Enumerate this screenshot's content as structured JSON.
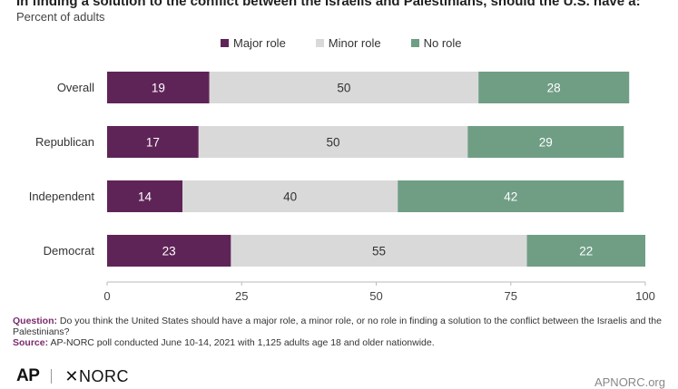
{
  "header": {
    "title": "In finding a solution to the conflict between the Israelis and Palestinians, should the U.S. have a:",
    "subtitle": "Percent of adults"
  },
  "colors": {
    "major": "#5f2457",
    "minor": "#d9d9d9",
    "none": "#6f9e85",
    "accent": "#7b2a6d"
  },
  "chart_data": {
    "type": "bar",
    "orientation": "horizontal",
    "stacked": true,
    "categories": [
      "Overall",
      "Republican",
      "Independent",
      "Democrat"
    ],
    "series": [
      {
        "name": "Major role",
        "values": [
          19,
          17,
          14,
          23
        ]
      },
      {
        "name": "Minor role",
        "values": [
          50,
          50,
          40,
          55
        ]
      },
      {
        "name": "No role",
        "values": [
          28,
          29,
          42,
          22
        ]
      }
    ],
    "xlim": [
      0,
      100
    ],
    "xticks": [
      "0",
      "25",
      "50",
      "75",
      "100"
    ],
    "legend": "top",
    "grid": false
  },
  "footer": {
    "question_label": "Question:",
    "question_text": "Do you think the United States should have a major role, a minor role, or no role in finding a solution to the conflict between the Israelis and the Palestinians?",
    "source_label": "Source:",
    "source_text": "AP-NORC poll conducted June 10-14, 2021 with 1,125 adults age 18 and older nationwide.",
    "logo_ap": "AP",
    "logo_norc": "✕NORC",
    "site": "APNORC.org"
  }
}
